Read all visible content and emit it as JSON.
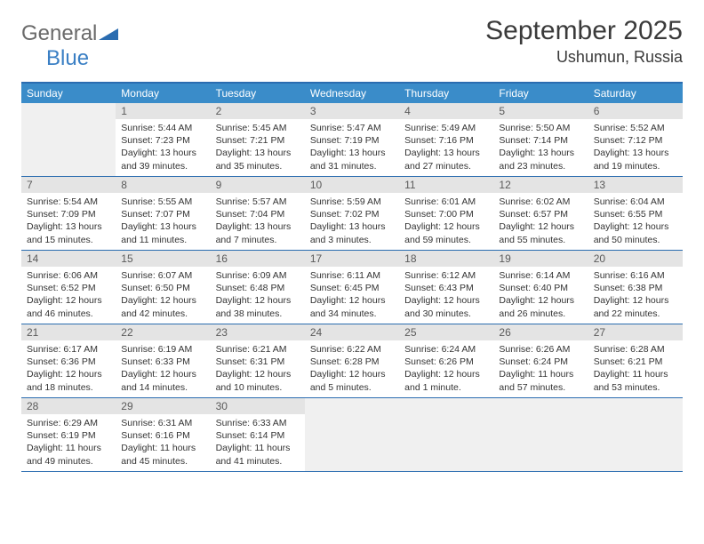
{
  "brand": {
    "part1": "General",
    "part2": "Blue"
  },
  "title": "September 2025",
  "location": "Ushumun, Russia",
  "colors": {
    "header_bar": "#3a8cc9",
    "rule": "#2a6cb0",
    "daynum_bg": "#e4e4e4",
    "empty_bg": "#f0f0f0",
    "text": "#333333",
    "brand_gray": "#6a6a6a",
    "brand_blue": "#3a7fc4"
  },
  "weekdays": [
    "Sunday",
    "Monday",
    "Tuesday",
    "Wednesday",
    "Thursday",
    "Friday",
    "Saturday"
  ],
  "weeks": [
    [
      null,
      {
        "n": "1",
        "sunrise": "Sunrise: 5:44 AM",
        "sunset": "Sunset: 7:23 PM",
        "daylight": "Daylight: 13 hours and 39 minutes."
      },
      {
        "n": "2",
        "sunrise": "Sunrise: 5:45 AM",
        "sunset": "Sunset: 7:21 PM",
        "daylight": "Daylight: 13 hours and 35 minutes."
      },
      {
        "n": "3",
        "sunrise": "Sunrise: 5:47 AM",
        "sunset": "Sunset: 7:19 PM",
        "daylight": "Daylight: 13 hours and 31 minutes."
      },
      {
        "n": "4",
        "sunrise": "Sunrise: 5:49 AM",
        "sunset": "Sunset: 7:16 PM",
        "daylight": "Daylight: 13 hours and 27 minutes."
      },
      {
        "n": "5",
        "sunrise": "Sunrise: 5:50 AM",
        "sunset": "Sunset: 7:14 PM",
        "daylight": "Daylight: 13 hours and 23 minutes."
      },
      {
        "n": "6",
        "sunrise": "Sunrise: 5:52 AM",
        "sunset": "Sunset: 7:12 PM",
        "daylight": "Daylight: 13 hours and 19 minutes."
      }
    ],
    [
      {
        "n": "7",
        "sunrise": "Sunrise: 5:54 AM",
        "sunset": "Sunset: 7:09 PM",
        "daylight": "Daylight: 13 hours and 15 minutes."
      },
      {
        "n": "8",
        "sunrise": "Sunrise: 5:55 AM",
        "sunset": "Sunset: 7:07 PM",
        "daylight": "Daylight: 13 hours and 11 minutes."
      },
      {
        "n": "9",
        "sunrise": "Sunrise: 5:57 AM",
        "sunset": "Sunset: 7:04 PM",
        "daylight": "Daylight: 13 hours and 7 minutes."
      },
      {
        "n": "10",
        "sunrise": "Sunrise: 5:59 AM",
        "sunset": "Sunset: 7:02 PM",
        "daylight": "Daylight: 13 hours and 3 minutes."
      },
      {
        "n": "11",
        "sunrise": "Sunrise: 6:01 AM",
        "sunset": "Sunset: 7:00 PM",
        "daylight": "Daylight: 12 hours and 59 minutes."
      },
      {
        "n": "12",
        "sunrise": "Sunrise: 6:02 AM",
        "sunset": "Sunset: 6:57 PM",
        "daylight": "Daylight: 12 hours and 55 minutes."
      },
      {
        "n": "13",
        "sunrise": "Sunrise: 6:04 AM",
        "sunset": "Sunset: 6:55 PM",
        "daylight": "Daylight: 12 hours and 50 minutes."
      }
    ],
    [
      {
        "n": "14",
        "sunrise": "Sunrise: 6:06 AM",
        "sunset": "Sunset: 6:52 PM",
        "daylight": "Daylight: 12 hours and 46 minutes."
      },
      {
        "n": "15",
        "sunrise": "Sunrise: 6:07 AM",
        "sunset": "Sunset: 6:50 PM",
        "daylight": "Daylight: 12 hours and 42 minutes."
      },
      {
        "n": "16",
        "sunrise": "Sunrise: 6:09 AM",
        "sunset": "Sunset: 6:48 PM",
        "daylight": "Daylight: 12 hours and 38 minutes."
      },
      {
        "n": "17",
        "sunrise": "Sunrise: 6:11 AM",
        "sunset": "Sunset: 6:45 PM",
        "daylight": "Daylight: 12 hours and 34 minutes."
      },
      {
        "n": "18",
        "sunrise": "Sunrise: 6:12 AM",
        "sunset": "Sunset: 6:43 PM",
        "daylight": "Daylight: 12 hours and 30 minutes."
      },
      {
        "n": "19",
        "sunrise": "Sunrise: 6:14 AM",
        "sunset": "Sunset: 6:40 PM",
        "daylight": "Daylight: 12 hours and 26 minutes."
      },
      {
        "n": "20",
        "sunrise": "Sunrise: 6:16 AM",
        "sunset": "Sunset: 6:38 PM",
        "daylight": "Daylight: 12 hours and 22 minutes."
      }
    ],
    [
      {
        "n": "21",
        "sunrise": "Sunrise: 6:17 AM",
        "sunset": "Sunset: 6:36 PM",
        "daylight": "Daylight: 12 hours and 18 minutes."
      },
      {
        "n": "22",
        "sunrise": "Sunrise: 6:19 AM",
        "sunset": "Sunset: 6:33 PM",
        "daylight": "Daylight: 12 hours and 14 minutes."
      },
      {
        "n": "23",
        "sunrise": "Sunrise: 6:21 AM",
        "sunset": "Sunset: 6:31 PM",
        "daylight": "Daylight: 12 hours and 10 minutes."
      },
      {
        "n": "24",
        "sunrise": "Sunrise: 6:22 AM",
        "sunset": "Sunset: 6:28 PM",
        "daylight": "Daylight: 12 hours and 5 minutes."
      },
      {
        "n": "25",
        "sunrise": "Sunrise: 6:24 AM",
        "sunset": "Sunset: 6:26 PM",
        "daylight": "Daylight: 12 hours and 1 minute."
      },
      {
        "n": "26",
        "sunrise": "Sunrise: 6:26 AM",
        "sunset": "Sunset: 6:24 PM",
        "daylight": "Daylight: 11 hours and 57 minutes."
      },
      {
        "n": "27",
        "sunrise": "Sunrise: 6:28 AM",
        "sunset": "Sunset: 6:21 PM",
        "daylight": "Daylight: 11 hours and 53 minutes."
      }
    ],
    [
      {
        "n": "28",
        "sunrise": "Sunrise: 6:29 AM",
        "sunset": "Sunset: 6:19 PM",
        "daylight": "Daylight: 11 hours and 49 minutes."
      },
      {
        "n": "29",
        "sunrise": "Sunrise: 6:31 AM",
        "sunset": "Sunset: 6:16 PM",
        "daylight": "Daylight: 11 hours and 45 minutes."
      },
      {
        "n": "30",
        "sunrise": "Sunrise: 6:33 AM",
        "sunset": "Sunset: 6:14 PM",
        "daylight": "Daylight: 11 hours and 41 minutes."
      },
      null,
      null,
      null,
      null
    ]
  ]
}
